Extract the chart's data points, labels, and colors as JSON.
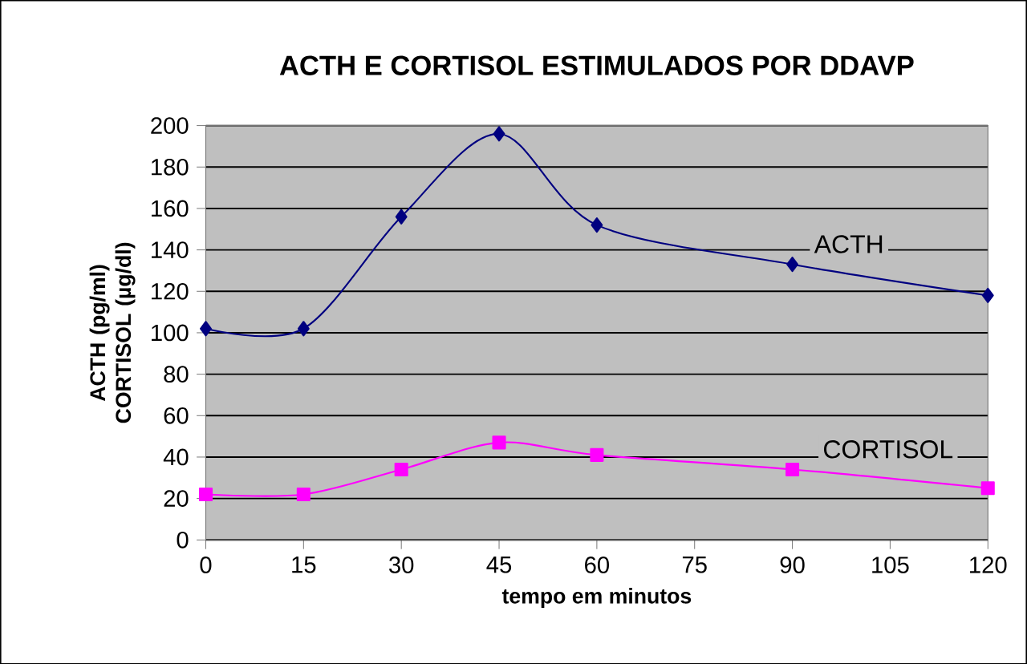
{
  "chart_data": {
    "type": "line",
    "title": "ACTH E CORTISOL ESTIMULADOS POR DDAVP",
    "xlabel": "tempo em minutos",
    "ylabel": "ACTH (pg/ml) CORTISOL (µg/dl)",
    "x": [
      0,
      15,
      30,
      45,
      60,
      90,
      120
    ],
    "series": [
      {
        "name": "ACTH",
        "color": "#000080",
        "marker": "diamond",
        "values": [
          102,
          102,
          156,
          196,
          152,
          133,
          118
        ]
      },
      {
        "name": "CORTISOL",
        "color": "#ff00ff",
        "marker": "square",
        "values": [
          22,
          22,
          34,
          47,
          41,
          34,
          25
        ]
      }
    ],
    "xlim": [
      0,
      120
    ],
    "xticks": [
      0,
      15,
      30,
      45,
      60,
      75,
      90,
      105,
      120
    ],
    "ylim": [
      0,
      200
    ],
    "yticks": [
      0,
      20,
      40,
      60,
      80,
      100,
      120,
      140,
      160,
      180,
      200
    ],
    "grid": "y",
    "legend": false,
    "line_style": "solid"
  }
}
